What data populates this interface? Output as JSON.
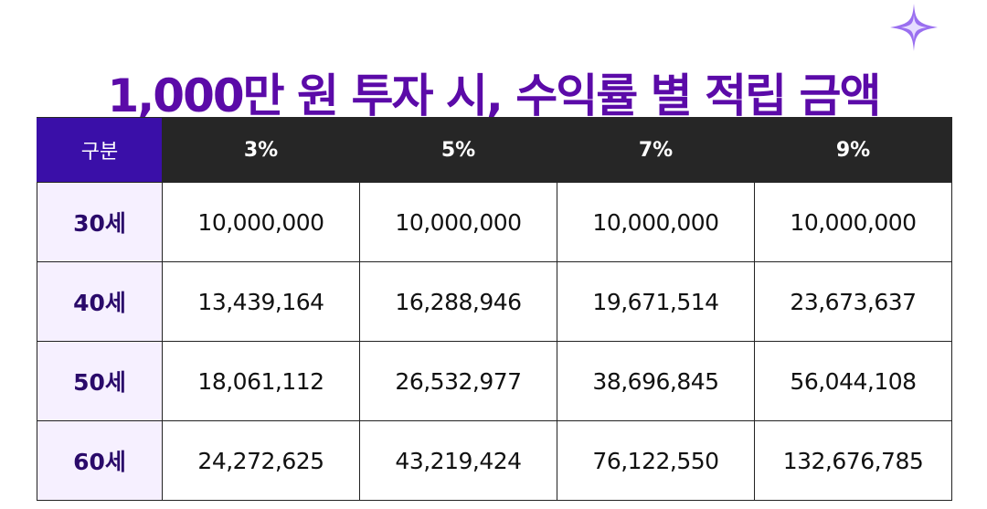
{
  "title": "1,000만 원 투자 시, 수익률 별 적립 금액",
  "colors": {
    "title": "#5b0aa8",
    "header_bg": "#262626",
    "corner_bg": "#3a0fa8",
    "row_header_bg": "#f6f0ff",
    "row_header_text": "#2a0a6a",
    "sparkle": "#9a6ff0"
  },
  "table": {
    "corner_label": "구분",
    "columns": [
      "3%",
      "5%",
      "7%",
      "9%"
    ],
    "rows": [
      {
        "label": "30세",
        "values": [
          "10,000,000",
          "10,000,000",
          "10,000,000",
          "10,000,000"
        ]
      },
      {
        "label": "40세",
        "values": [
          "13,439,164",
          "16,288,946",
          "19,671,514",
          "23,673,637"
        ]
      },
      {
        "label": "50세",
        "values": [
          "18,061,112",
          "26,532,977",
          "38,696,845",
          "56,044,108"
        ]
      },
      {
        "label": "60세",
        "values": [
          "24,272,625",
          "43,219,424",
          "76,122,550",
          "132,676,785"
        ]
      }
    ]
  },
  "icons": {
    "sparkle": "sparkle-icon"
  }
}
